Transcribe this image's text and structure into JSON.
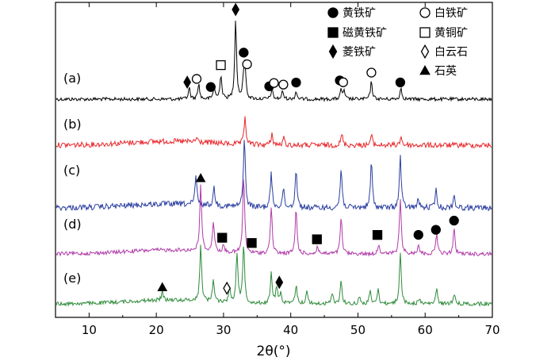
{
  "chart_data": {
    "type": "line",
    "xlabel": "2θ(°)",
    "ylabel": "",
    "xlim": [
      5,
      70
    ],
    "x_ticks": [
      10,
      20,
      30,
      40,
      50,
      60,
      70
    ],
    "grid": false,
    "legend": {
      "placement": "top-right",
      "entries": [
        {
          "symbol": "filled-circle",
          "label": "黄铁矿"
        },
        {
          "symbol": "open-circle",
          "label": "白铁矿"
        },
        {
          "symbol": "filled-square",
          "label": "磁黄铁矿"
        },
        {
          "symbol": "open-square",
          "label": "黄铜矿"
        },
        {
          "symbol": "filled-diamond",
          "label": "菱铁矿"
        },
        {
          "symbol": "open-diamond",
          "label": "白云石"
        },
        {
          "symbol": "filled-triangle",
          "label": "石英"
        }
      ]
    },
    "series": [
      {
        "label": "(a)",
        "color": "#000000",
        "noise": 0.45,
        "peaks": [
          [
            24.9,
            1.0
          ],
          [
            26.3,
            1.4
          ],
          [
            28.6,
            1.1
          ],
          [
            29.6,
            2.2
          ],
          [
            31.8,
            7.2
          ],
          [
            33.0,
            1.8
          ],
          [
            33.2,
            2.6
          ],
          [
            37.2,
            0.9
          ],
          [
            38.8,
            0.7
          ],
          [
            40.8,
            0.7
          ],
          [
            47.5,
            0.8
          ],
          [
            47.9,
            0.7
          ],
          [
            52.0,
            1.6
          ],
          [
            56.4,
            1.0
          ]
        ]
      },
      {
        "label": "(b)",
        "color": "#e8262a",
        "noise": 0.7,
        "peaks": [
          [
            26.0,
            0.4
          ],
          [
            33.2,
            2.5
          ],
          [
            37.2,
            1.0
          ],
          [
            39.0,
            0.6
          ],
          [
            47.6,
            1.0
          ],
          [
            52.0,
            0.9
          ],
          [
            56.4,
            0.8
          ]
        ]
      },
      {
        "label": "(c)",
        "color": "#2a3ea0",
        "noise": 0.75,
        "peaks": [
          [
            25.9,
            2.6
          ],
          [
            28.6,
            1.6
          ],
          [
            33.1,
            6.4
          ],
          [
            37.1,
            3.1
          ],
          [
            38.9,
            1.7
          ],
          [
            40.8,
            3.6
          ],
          [
            47.5,
            3.6
          ],
          [
            52.0,
            4.2
          ],
          [
            56.3,
            4.7
          ],
          [
            59.0,
            0.8
          ],
          [
            61.6,
            1.6
          ],
          [
            64.3,
            1.1
          ]
        ]
      },
      {
        "label": "(d)",
        "color": "#b03aa8",
        "noise": 0.5,
        "peaks": [
          [
            26.6,
            6.0
          ],
          [
            28.5,
            2.8
          ],
          [
            30.0,
            0.6
          ],
          [
            33.0,
            7.0
          ],
          [
            37.1,
            4.3
          ],
          [
            40.8,
            4.1
          ],
          [
            44.0,
            0.7
          ],
          [
            47.5,
            3.3
          ],
          [
            53.1,
            0.9
          ],
          [
            56.3,
            5.0
          ],
          [
            59.0,
            0.9
          ],
          [
            61.7,
            1.9
          ],
          [
            64.3,
            2.2
          ]
        ]
      },
      {
        "label": "(e)",
        "color": "#2e8b3a",
        "noise": 0.5,
        "peaks": [
          [
            20.9,
            0.7
          ],
          [
            26.6,
            5.0
          ],
          [
            28.5,
            2.0
          ],
          [
            30.9,
            1.3
          ],
          [
            32.0,
            4.5
          ],
          [
            33.0,
            5.3
          ],
          [
            37.1,
            2.7
          ],
          [
            37.9,
            1.5
          ],
          [
            38.5,
            1.0
          ],
          [
            40.8,
            1.7
          ],
          [
            42.4,
            1.2
          ],
          [
            46.2,
            1.0
          ],
          [
            47.5,
            2.1
          ],
          [
            50.2,
            0.6
          ],
          [
            51.8,
            1.1
          ],
          [
            53.0,
            1.3
          ],
          [
            56.3,
            4.7
          ],
          [
            59.1,
            0.5
          ],
          [
            61.7,
            1.3
          ],
          [
            64.3,
            1.0
          ]
        ]
      }
    ],
    "markers": [
      {
        "series": "(a)",
        "symbol": "filled-diamond",
        "x": 24.6
      },
      {
        "series": "(a)",
        "symbol": "open-circle",
        "x": 26.0
      },
      {
        "series": "(a)",
        "symbol": "filled-circle",
        "x": 28.1
      },
      {
        "series": "(a)",
        "symbol": "open-square",
        "x": 29.6
      },
      {
        "series": "(a)",
        "symbol": "filled-diamond",
        "x": 31.8
      },
      {
        "series": "(a)",
        "symbol": "filled-circle",
        "x": 33.0
      },
      {
        "series": "(a)",
        "symbol": "open-circle",
        "x": 33.5
      },
      {
        "series": "(a)",
        "symbol": "filled-circle",
        "x": 36.8
      },
      {
        "series": "(a)",
        "symbol": "open-circle",
        "x": 37.5
      },
      {
        "series": "(a)",
        "symbol": "open-circle",
        "x": 38.9
      },
      {
        "series": "(a)",
        "symbol": "filled-circle",
        "x": 40.8
      },
      {
        "series": "(a)",
        "symbol": "filled-circle",
        "x": 47.3
      },
      {
        "series": "(a)",
        "symbol": "open-circle",
        "x": 47.8
      },
      {
        "series": "(a)",
        "symbol": "open-circle",
        "x": 52.0
      },
      {
        "series": "(a)",
        "symbol": "filled-circle",
        "x": 56.3
      },
      {
        "series": "(d)",
        "symbol": "filled-triangle",
        "x": 26.6
      },
      {
        "series": "(d)",
        "symbol": "filled-square",
        "x": 29.8
      },
      {
        "series": "(d)",
        "symbol": "filled-square",
        "x": 34.2
      },
      {
        "series": "(d)",
        "symbol": "filled-square",
        "x": 43.9
      },
      {
        "series": "(d)",
        "symbol": "filled-square",
        "x": 52.9
      },
      {
        "series": "(d)",
        "symbol": "filled-circle",
        "x": 59.0
      },
      {
        "series": "(d)",
        "symbol": "filled-circle",
        "x": 61.6
      },
      {
        "series": "(d)",
        "symbol": "filled-circle",
        "x": 64.3
      },
      {
        "series": "(e)",
        "symbol": "filled-triangle",
        "x": 20.9
      },
      {
        "series": "(e)",
        "symbol": "open-diamond",
        "x": 30.5
      },
      {
        "series": "(e)",
        "symbol": "filled-diamond",
        "x": 38.3
      }
    ]
  }
}
